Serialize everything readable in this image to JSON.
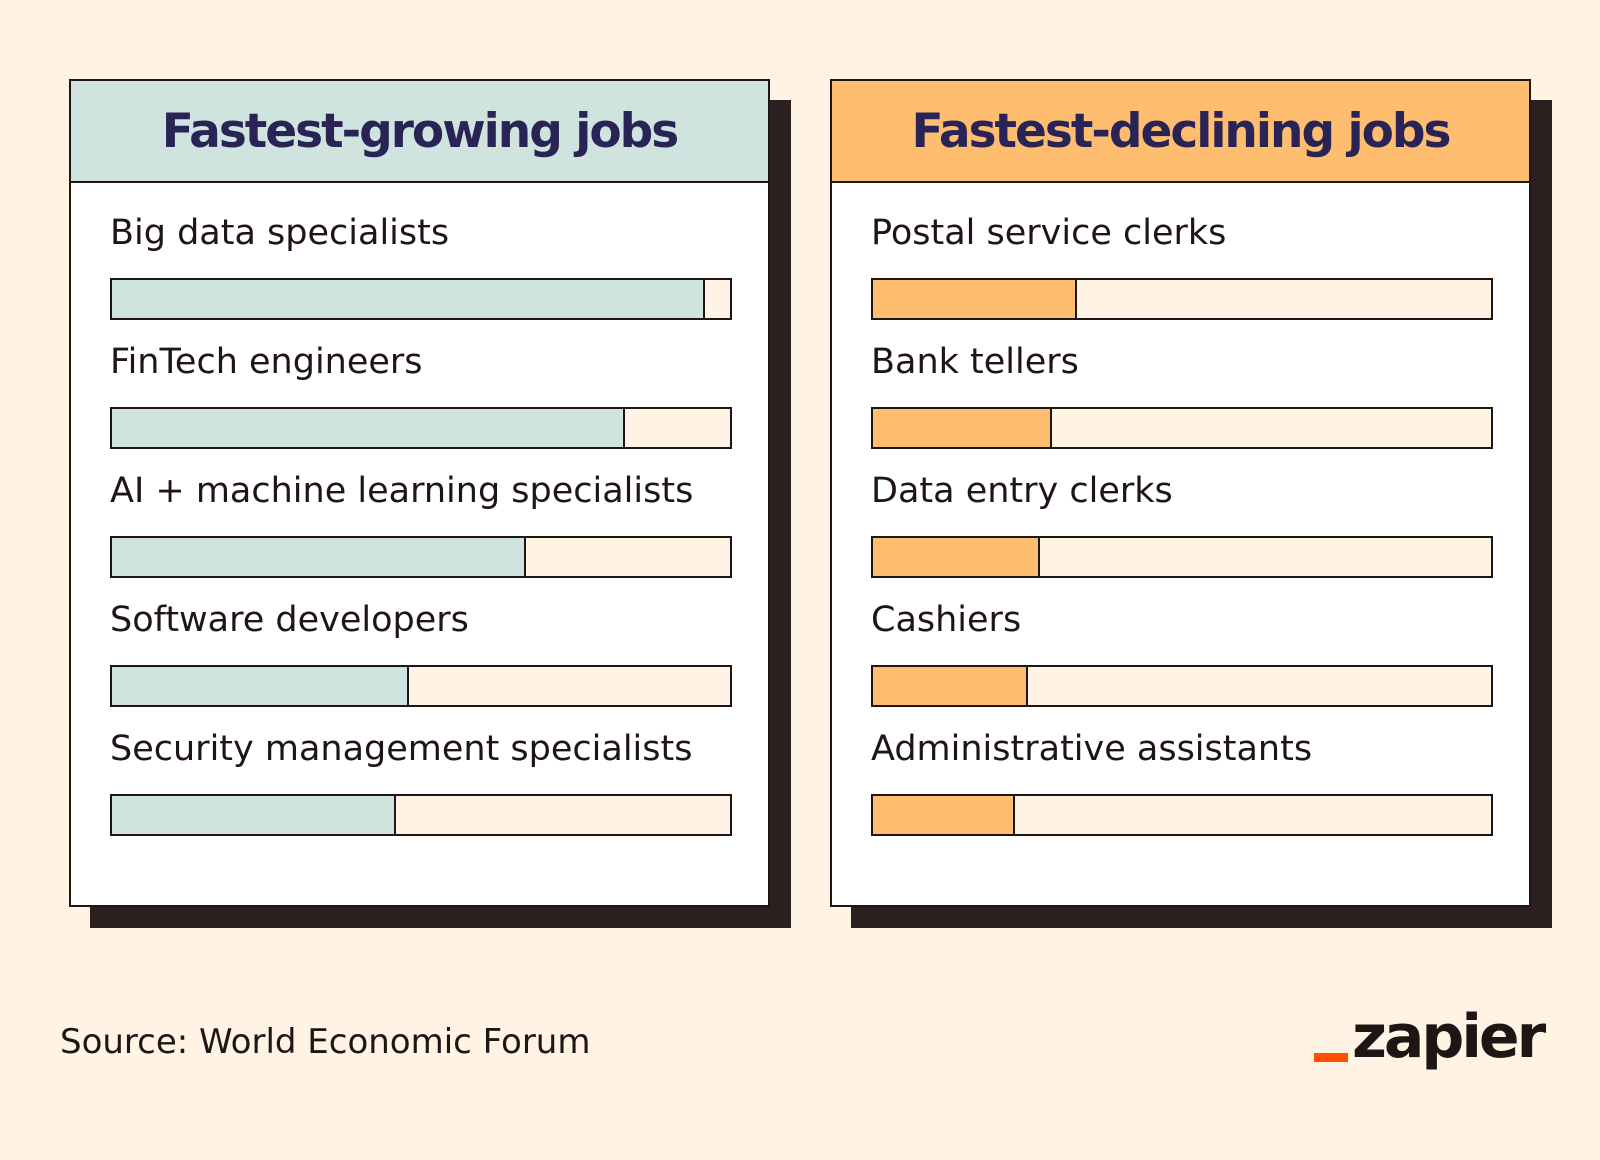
{
  "colors": {
    "background": "#fff3e4",
    "growing_header": "#cfe3df",
    "growing_fill": "#cfe3df",
    "declining_header": "#ffbe6f",
    "declining_fill": "#ffbe6f",
    "title_text": "#2a2456",
    "ink": "#201515",
    "logo_accent": "#ff4f00"
  },
  "chart_data": [
    {
      "type": "bar",
      "title": "Fastest-growing jobs",
      "categories": [
        "Big data specialists",
        "FinTech engineers",
        "AI + machine learning specialists",
        "Software developers",
        "Security management specialists"
      ],
      "values": [
        0.96,
        0.83,
        0.67,
        0.48,
        0.46
      ],
      "xlim": [
        0,
        1
      ],
      "orientation": "horizontal",
      "axes_shown": false,
      "grid": false,
      "legend": "none"
    },
    {
      "type": "bar",
      "title": "Fastest-declining jobs",
      "categories": [
        "Postal service clerks",
        "Bank tellers",
        "Data entry clerks",
        "Cashiers",
        "Administrative assistants"
      ],
      "values": [
        0.33,
        0.29,
        0.27,
        0.25,
        0.23
      ],
      "xlim": [
        0,
        1
      ],
      "orientation": "horizontal",
      "axes_shown": false,
      "grid": false,
      "legend": "none"
    }
  ],
  "footer": {
    "source": "Source: World Economic Forum",
    "logo_text": "zapier",
    "logo_icon": "zapier-logo-icon"
  }
}
